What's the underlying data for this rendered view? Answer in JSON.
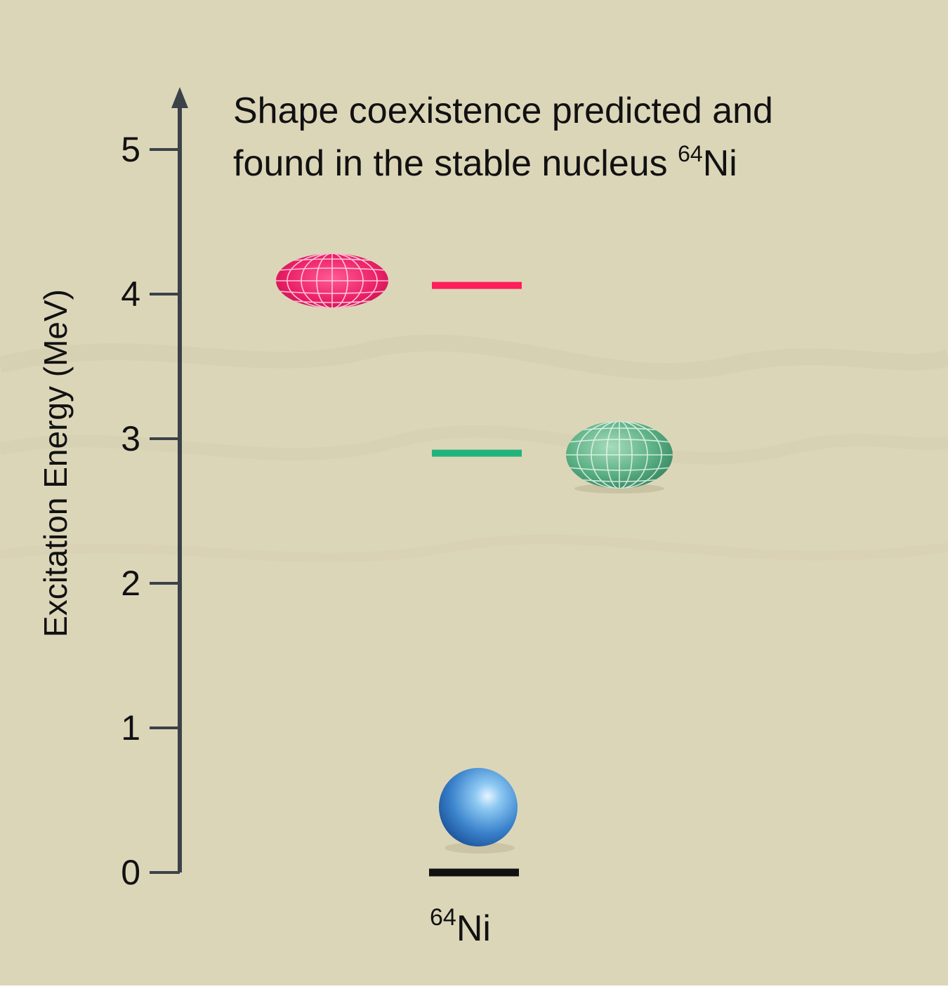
{
  "title": {
    "line1": "Shape coexistence predicted and",
    "line2_prefix": "found in the stable nucleus ",
    "line2_mass": "64",
    "line2_element": "Ni"
  },
  "axis": {
    "ylabel": "Excitation Energy (MeV)",
    "ticks": [
      "0",
      "1",
      "2",
      "3",
      "4",
      "5"
    ],
    "ylim": [
      0,
      5.6
    ]
  },
  "nucleus_label": {
    "mass": "64",
    "element": "Ni"
  },
  "levels": [
    {
      "id": "ground",
      "energy_mev": 0.0,
      "color": "#111111",
      "shape": "spherical",
      "shape_color": "#3f86cf"
    },
    {
      "id": "oblate",
      "energy_mev": 2.9,
      "color": "#22b37d",
      "shape": "oblate",
      "shape_color": "#4fa77c"
    },
    {
      "id": "prolate",
      "energy_mev": 4.06,
      "color": "#ff1f5a",
      "shape": "prolate",
      "shape_color": "#ef1f67"
    }
  ],
  "colors": {
    "background": "#dcd6b9",
    "axis": "#3b4248"
  }
}
